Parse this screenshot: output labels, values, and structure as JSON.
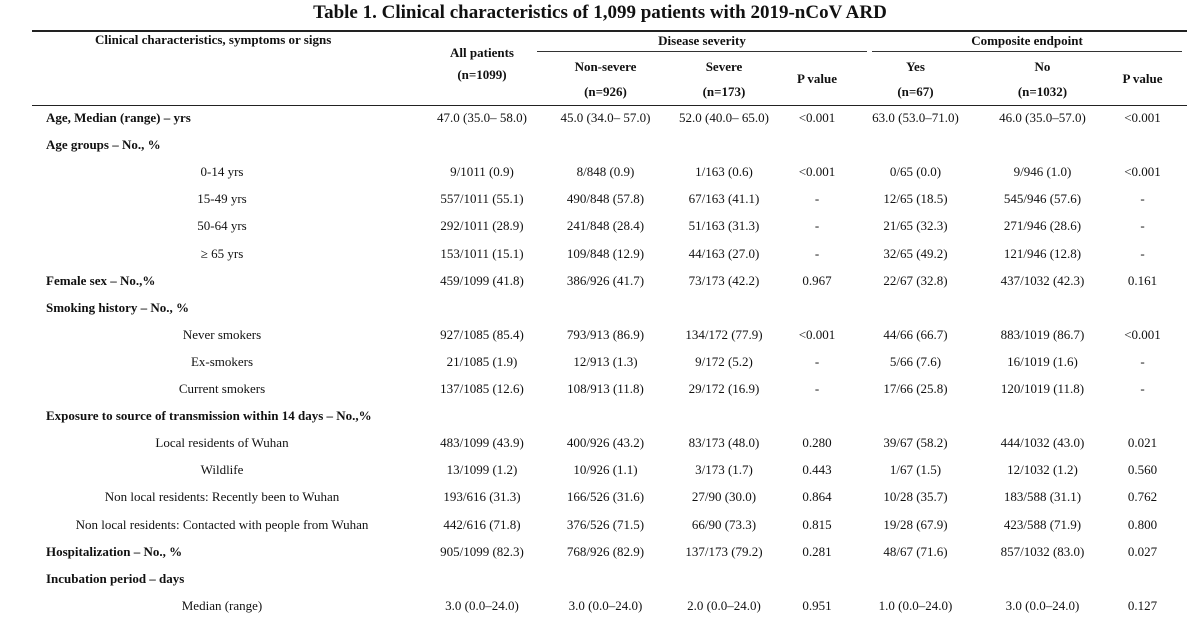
{
  "title": "Table 1. Clinical characteristics of 1,099 patients with 2019-nCoV ARD",
  "headers": {
    "characteristics": "Clinical characteristics, symptoms or signs",
    "all_patients": "All patients",
    "all_n": "(n=1099)",
    "disease_severity": "Disease severity",
    "composite_endpoint": "Composite endpoint",
    "non_severe": "Non-severe",
    "non_severe_n": "(n=926)",
    "severe": "Severe",
    "severe_n": "(n=173)",
    "p_value_1": "P value",
    "yes": "Yes",
    "yes_n": "(n=67)",
    "no": "No",
    "no_n": "(n=1032)",
    "p_value_2": "P value"
  },
  "rows": [
    {
      "label": "Age, Median (range) – yrs",
      "type": "section",
      "values": [
        "47.0 (35.0– 58.0)",
        "45.0 (34.0– 57.0)",
        "52.0 (40.0– 65.0)",
        "<0.001",
        "63.0 (53.0–71.0)",
        "46.0 (35.0–57.0)",
        "<0.001"
      ]
    },
    {
      "label": "Age groups – No., %",
      "type": "section",
      "values": [
        "",
        "",
        "",
        "",
        "",
        "",
        ""
      ]
    },
    {
      "label": "0-14 yrs",
      "type": "sub",
      "values": [
        "9/1011 (0.9)",
        "8/848 (0.9)",
        "1/163 (0.6)",
        "<0.001",
        "0/65 (0.0)",
        "9/946 (1.0)",
        "<0.001"
      ]
    },
    {
      "label": "15-49 yrs",
      "type": "sub",
      "values": [
        "557/1011 (55.1)",
        "490/848 (57.8)",
        "67/163 (41.1)",
        "-",
        "12/65 (18.5)",
        "545/946 (57.6)",
        "-"
      ]
    },
    {
      "label": "50-64 yrs",
      "type": "sub",
      "values": [
        "292/1011 (28.9)",
        "241/848 (28.4)",
        "51/163 (31.3)",
        "-",
        "21/65 (32.3)",
        "271/946 (28.6)",
        "-"
      ]
    },
    {
      "label": "≥ 65 yrs",
      "type": "sub",
      "values": [
        "153/1011 (15.1)",
        "109/848 (12.9)",
        "44/163 (27.0)",
        "-",
        "32/65 (49.2)",
        "121/946 (12.8)",
        "-"
      ]
    },
    {
      "label": "Female sex – No.,%",
      "type": "section",
      "values": [
        "459/1099 (41.8)",
        "386/926 (41.7)",
        "73/173 (42.2)",
        "0.967",
        "22/67 (32.8)",
        "437/1032 (42.3)",
        "0.161"
      ]
    },
    {
      "label": "Smoking history – No., %",
      "type": "section",
      "values": [
        "",
        "",
        "",
        "",
        "",
        "",
        ""
      ]
    },
    {
      "label": "Never smokers",
      "type": "sub",
      "values": [
        "927/1085 (85.4)",
        "793/913 (86.9)",
        "134/172 (77.9)",
        "<0.001",
        "44/66 (66.7)",
        "883/1019 (86.7)",
        "<0.001"
      ]
    },
    {
      "label": "Ex-smokers",
      "type": "sub",
      "values": [
        "21/1085 (1.9)",
        "12/913 (1.3)",
        "9/172 (5.2)",
        "-",
        "5/66 (7.6)",
        "16/1019 (1.6)",
        "-"
      ]
    },
    {
      "label": "Current smokers",
      "type": "sub",
      "values": [
        "137/1085 (12.6)",
        "108/913 (11.8)",
        "29/172 (16.9)",
        "-",
        "17/66 (25.8)",
        "120/1019 (11.8)",
        "-"
      ]
    },
    {
      "label": "Exposure to source of transmission within 14 days – No.,%",
      "type": "section",
      "values": [
        "",
        "",
        "",
        "",
        "",
        "",
        ""
      ]
    },
    {
      "label": "Local residents of Wuhan",
      "type": "sub",
      "values": [
        "483/1099 (43.9)",
        "400/926 (43.2)",
        "83/173 (48.0)",
        "0.280",
        "39/67 (58.2)",
        "444/1032 (43.0)",
        "0.021"
      ]
    },
    {
      "label": "Wildlife",
      "type": "sub",
      "values": [
        "13/1099 (1.2)",
        "10/926 (1.1)",
        "3/173 (1.7)",
        "0.443",
        "1/67 (1.5)",
        "12/1032 (1.2)",
        "0.560"
      ]
    },
    {
      "label": "Non local residents: Recently been to Wuhan",
      "type": "sub",
      "values": [
        "193/616 (31.3)",
        "166/526 (31.6)",
        "27/90 (30.0)",
        "0.864",
        "10/28 (35.7)",
        "183/588 (31.1)",
        "0.762"
      ]
    },
    {
      "label": "Non local residents: Contacted with people from Wuhan",
      "type": "sub",
      "values": [
        "442/616 (71.8)",
        "376/526 (71.5)",
        "66/90 (73.3)",
        "0.815",
        "19/28 (67.9)",
        "423/588 (71.9)",
        "0.800"
      ]
    },
    {
      "label": "Hospitalization – No., %",
      "type": "section",
      "values": [
        "905/1099 (82.3)",
        "768/926 (82.9)",
        "137/173 (79.2)",
        "0.281",
        "48/67 (71.6)",
        "857/1032 (83.0)",
        "0.027"
      ]
    },
    {
      "label": "Incubation period – days",
      "type": "section",
      "values": [
        "",
        "",
        "",
        "",
        "",
        "",
        ""
      ]
    },
    {
      "label": "Median (range)",
      "type": "sub",
      "values": [
        "3.0 (0.0–24.0)",
        "3.0 (0.0–24.0)",
        "2.0 (0.0–24.0)",
        "0.951",
        "1.0 (0.0–24.0)",
        "3.0 (0.0–24.0)",
        "0.127"
      ]
    }
  ]
}
